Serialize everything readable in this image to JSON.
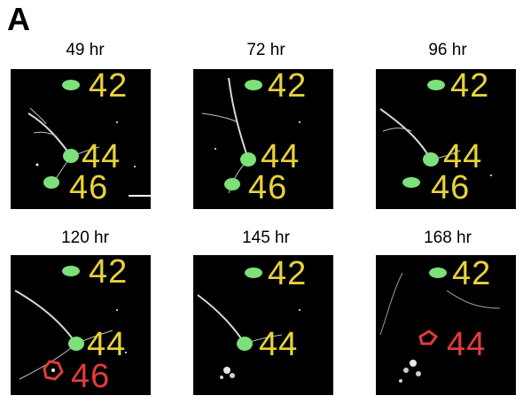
{
  "figure": {
    "panel_letter": "A"
  },
  "frames": [
    {
      "time": "49 hr",
      "labels": [
        {
          "text": "42",
          "color": "#e8d23a"
        },
        {
          "text": "44",
          "color": "#e8d23a"
        },
        {
          "text": "46",
          "color": "#e8d23a"
        }
      ]
    },
    {
      "time": "72 hr",
      "labels": [
        {
          "text": "42",
          "color": "#e8d23a"
        },
        {
          "text": "44",
          "color": "#e8d23a"
        },
        {
          "text": "46",
          "color": "#e8d23a"
        }
      ]
    },
    {
      "time": "96 hr",
      "labels": [
        {
          "text": "42",
          "color": "#e8d23a"
        },
        {
          "text": "44",
          "color": "#e8d23a"
        },
        {
          "text": "46",
          "color": "#e8d23a"
        }
      ]
    },
    {
      "time": "120 hr",
      "labels": [
        {
          "text": "42",
          "color": "#e8d23a"
        },
        {
          "text": "44",
          "color": "#e8d23a"
        },
        {
          "text": "46",
          "color": "#e23b3b"
        }
      ]
    },
    {
      "time": "145 hr",
      "labels": [
        {
          "text": "42",
          "color": "#e8d23a"
        },
        {
          "text": "44",
          "color": "#e8d23a"
        }
      ]
    },
    {
      "time": "168 hr",
      "labels": [
        {
          "text": "42",
          "color": "#e8d23a"
        },
        {
          "text": "44",
          "color": "#e23b3b"
        }
      ]
    }
  ],
  "colors": {
    "live_cell": "#7de07a",
    "dead_cell": "#e23b3b",
    "label_alive": "#e8d23a",
    "label_dead": "#e23b3b",
    "background": "#000000"
  }
}
